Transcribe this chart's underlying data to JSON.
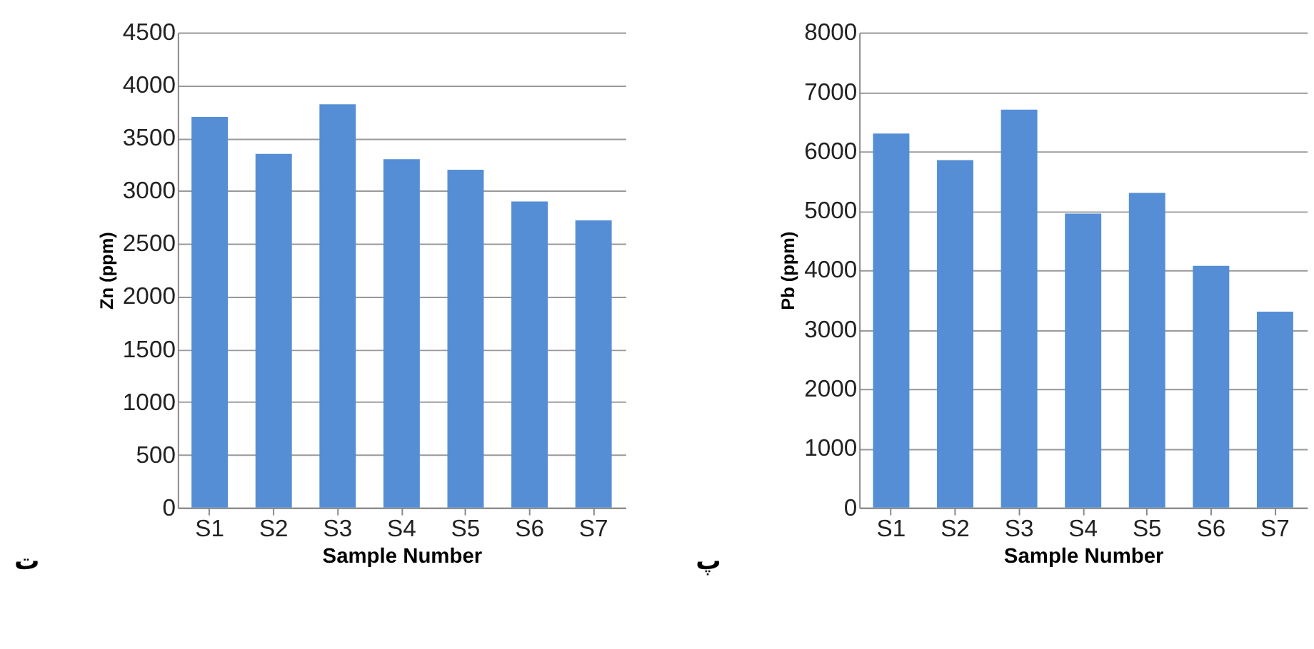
{
  "chart_data": [
    {
      "type": "bar",
      "categories": [
        "S1",
        "S2",
        "S3",
        "S4",
        "S5",
        "S6",
        "S7"
      ],
      "values": [
        3700,
        3350,
        3820,
        3300,
        3200,
        2900,
        2720
      ],
      "color": "#558ed5",
      "xlabel": "Sample Number",
      "ylabel": "Zn (ppm)",
      "ylim": [
        0,
        4500
      ],
      "yticks": [
        0,
        500,
        1000,
        1500,
        2000,
        2500,
        3000,
        3500,
        4000,
        4500
      ],
      "grid": "y",
      "annotations": [
        "ت"
      ]
    },
    {
      "type": "bar",
      "categories": [
        "S1",
        "S2",
        "S3",
        "S4",
        "S5",
        "S6",
        "S7"
      ],
      "values": [
        6300,
        5850,
        6700,
        4950,
        5300,
        4070,
        3300
      ],
      "color": "#558ed5",
      "xlabel": "Sample Number",
      "ylabel": "Pb (ppm)",
      "ylim": [
        0,
        8000
      ],
      "yticks": [
        0,
        1000,
        2000,
        3000,
        4000,
        5000,
        6000,
        7000,
        8000
      ],
      "grid": "y",
      "annotations": [
        "پ"
      ]
    }
  ]
}
